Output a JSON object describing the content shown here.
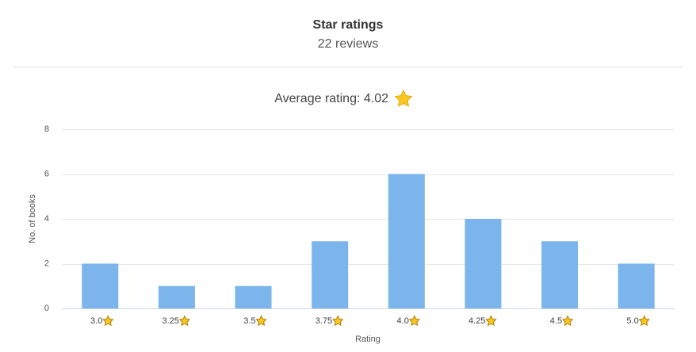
{
  "chart_data": {
    "type": "bar",
    "title": "Star ratings",
    "subtitle": "22 reviews",
    "annotation": "Average rating: 4.02",
    "categories": [
      "3.0",
      "3.25",
      "3.5",
      "3.75",
      "4.0",
      "4.25",
      "4.5",
      "5.0"
    ],
    "values": [
      2,
      1,
      1,
      3,
      6,
      4,
      3,
      2
    ],
    "color": "#7cb5ec",
    "ylim": [
      0,
      8
    ],
    "yticks": [
      0,
      2,
      4,
      6,
      8
    ],
    "grid": true,
    "y_label": "No. of books",
    "x_label": "Rating"
  }
}
